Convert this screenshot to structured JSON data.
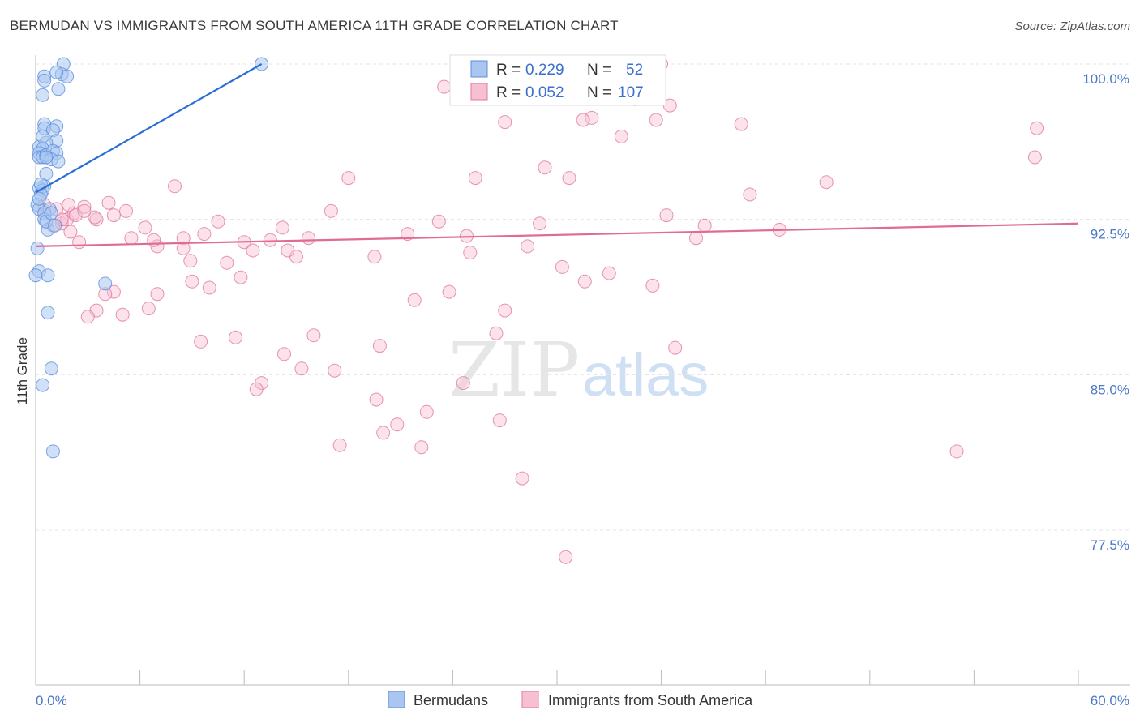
{
  "title": "BERMUDAN VS IMMIGRANTS FROM SOUTH AMERICA 11TH GRADE CORRELATION CHART",
  "source": "Source: ZipAtlas.com",
  "watermark": {
    "zip": "ZIP",
    "atlas": "atlas"
  },
  "chart_data": {
    "type": "scatter",
    "title": "BERMUDAN VS IMMIGRANTS FROM SOUTH AMERICA 11TH GRADE CORRELATION CHART",
    "xlabel": "",
    "ylabel": "11th Grade",
    "xlim": [
      0,
      60
    ],
    "ylim": [
      70,
      101
    ],
    "x_tick_labels": {
      "min": "0.0%",
      "max": "60.0%"
    },
    "y_ticks": [
      {
        "value": 100,
        "label": "100.0%"
      },
      {
        "value": 92.5,
        "label": "92.5%"
      },
      {
        "value": 85,
        "label": "85.0%"
      },
      {
        "value": 77.5,
        "label": "77.5%"
      }
    ],
    "stats": {
      "r_label": "R =",
      "n_label": "N ="
    },
    "series": [
      {
        "name": "Bermudans",
        "color": "#5b8fdd",
        "fill": "#aac6f0",
        "R": "0.229",
        "N": "52",
        "trend": {
          "x": [
            0,
            13
          ],
          "y": [
            93.8,
            100.0
          ]
        },
        "x": [
          1.6,
          1.5,
          0.5,
          1.8,
          1.2,
          0.5,
          0.4,
          1.3,
          0.5,
          1.2,
          0.5,
          1.0,
          1.2,
          0.6,
          0.2,
          0.4,
          0.2,
          0.2,
          0.4,
          0.6,
          1.0,
          1.2,
          0.9,
          1.3,
          0.6,
          0.6,
          0.5,
          0.2,
          0.4,
          0.3,
          0.1,
          0.2,
          0.8,
          0.5,
          0.5,
          0.7,
          0.1,
          0.2,
          0.0,
          0.7,
          0.7,
          4.0,
          0.4,
          0.9,
          1.0,
          0.6,
          1.1,
          0.9,
          0.2,
          0.3,
          0.4,
          13.0
        ],
        "y": [
          100.0,
          99.5,
          99.4,
          99.4,
          99.6,
          99.2,
          98.5,
          98.8,
          97.1,
          97.0,
          96.9,
          96.8,
          96.3,
          96.2,
          96.0,
          95.9,
          95.7,
          95.5,
          95.5,
          95.6,
          95.8,
          95.7,
          95.4,
          95.3,
          95.5,
          94.7,
          94.1,
          94.0,
          93.9,
          93.7,
          93.2,
          93.0,
          93.0,
          92.8,
          92.5,
          92.0,
          91.1,
          90.0,
          89.8,
          89.8,
          88.0,
          89.4,
          84.5,
          85.3,
          81.3,
          92.4,
          92.2,
          92.8,
          93.5,
          94.2,
          96.5,
          100.0
        ]
      },
      {
        "name": "Immigrants from South America",
        "color": "#e07aa0",
        "fill": "#f7bfd2",
        "R": "0.052",
        "N": "107",
        "trend": {
          "x": [
            0,
            60
          ],
          "y": [
            91.2,
            92.3
          ]
        },
        "x": [
          23.5,
          36.5,
          32.0,
          34.5,
          35.7,
          33.8,
          36.0,
          27.0,
          29.3,
          31.5,
          33.7,
          40.6,
          45.5,
          53.0,
          57.6,
          57.5,
          36.8,
          18.0,
          25.3,
          29.0,
          30.7,
          19.5,
          8.0,
          1.5,
          1.8,
          2.2,
          2.8,
          3.5,
          4.5,
          5.5,
          6.3,
          7.0,
          8.5,
          9.7,
          10.5,
          12.0,
          14.2,
          15.7,
          17.0,
          21.4,
          23.2,
          24.8,
          28.3,
          30.3,
          31.6,
          33.0,
          35.5,
          38.0,
          38.5,
          41.1,
          36.3,
          42.8,
          27.0,
          26.5,
          25.0,
          23.8,
          21.8,
          19.8,
          15.0,
          14.5,
          13.5,
          12.5,
          11.8,
          11.0,
          10.0,
          9.0,
          8.5,
          7.0,
          6.5,
          5.0,
          4.5,
          4.0,
          3.5,
          3.0,
          2.5,
          2.0,
          1.5,
          1.0,
          0.5,
          0.5,
          1.2,
          2.3,
          3.4,
          2.8,
          1.9,
          4.2,
          5.2,
          6.8,
          8.9,
          9.5,
          14.3,
          15.3,
          16.0,
          11.5,
          13.0,
          17.5,
          20.0,
          22.5,
          26.7,
          28.0,
          30.5,
          19.6,
          12.7,
          17.2,
          24.6,
          20.8,
          22.2
        ],
        "y": [
          98.9,
          98.0,
          97.4,
          98.3,
          97.3,
          99.7,
          100.0,
          97.2,
          95.0,
          97.3,
          96.5,
          97.1,
          94.3,
          81.3,
          96.9,
          95.5,
          86.3,
          94.5,
          94.5,
          92.3,
          94.5,
          90.7,
          94.1,
          92.3,
          92.5,
          92.8,
          93.1,
          92.5,
          92.7,
          91.6,
          92.1,
          91.2,
          91.6,
          91.8,
          92.4,
          91.4,
          92.1,
          91.6,
          92.9,
          91.8,
          92.4,
          91.7,
          91.2,
          90.2,
          89.5,
          89.9,
          89.3,
          91.6,
          92.2,
          93.7,
          92.7,
          92.0,
          88.1,
          87.0,
          90.9,
          89.0,
          88.6,
          86.4,
          90.7,
          91.0,
          91.5,
          91.0,
          89.7,
          90.4,
          89.2,
          89.5,
          91.1,
          88.9,
          88.2,
          87.9,
          89.0,
          88.9,
          88.1,
          87.8,
          91.4,
          91.9,
          92.5,
          92.2,
          92.9,
          93.2,
          93.0,
          92.7,
          92.6,
          92.9,
          93.2,
          93.3,
          92.9,
          91.5,
          90.5,
          86.6,
          86.0,
          85.3,
          86.9,
          86.8,
          84.6,
          81.6,
          82.2,
          83.2,
          82.8,
          80.0,
          76.2,
          83.8,
          84.3,
          85.2,
          84.6,
          82.6,
          81.5
        ]
      }
    ]
  }
}
